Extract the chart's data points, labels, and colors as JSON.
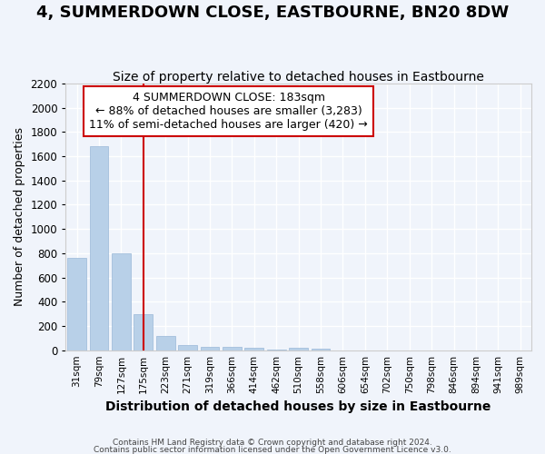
{
  "title": "4, SUMMERDOWN CLOSE, EASTBOURNE, BN20 8DW",
  "subtitle": "Size of property relative to detached houses in Eastbourne",
  "xlabel": "Distribution of detached houses by size in Eastbourne",
  "ylabel": "Number of detached properties",
  "footnote1": "Contains HM Land Registry data © Crown copyright and database right 2024.",
  "footnote2": "Contains public sector information licensed under the Open Government Licence v3.0.",
  "categories": [
    "31sqm",
    "79sqm",
    "127sqm",
    "175sqm",
    "223sqm",
    "271sqm",
    "319sqm",
    "366sqm",
    "414sqm",
    "462sqm",
    "510sqm",
    "558sqm",
    "606sqm",
    "654sqm",
    "702sqm",
    "750sqm",
    "798sqm",
    "846sqm",
    "894sqm",
    "941sqm",
    "989sqm"
  ],
  "values": [
    760,
    1680,
    800,
    300,
    115,
    45,
    28,
    25,
    20,
    2,
    20,
    15,
    0,
    0,
    0,
    0,
    0,
    0,
    0,
    0,
    0
  ],
  "bar_color": "#b8d0e8",
  "bar_edge_color": "#9ab8d8",
  "background_color": "#f0f4fb",
  "grid_color": "#ffffff",
  "red_line_x": 3,
  "ylim": [
    0,
    2200
  ],
  "yticks": [
    0,
    200,
    400,
    600,
    800,
    1000,
    1200,
    1400,
    1600,
    1800,
    2000,
    2200
  ],
  "annotation_text": "4 SUMMERDOWN CLOSE: 183sqm\n← 88% of detached houses are smaller (3,283)\n11% of semi-detached houses are larger (420) →",
  "annotation_box_color": "#ffffff",
  "annotation_border_color": "#cc0000",
  "red_line_color": "#cc0000",
  "title_fontsize": 13,
  "subtitle_fontsize": 10,
  "xlabel_fontsize": 10,
  "ylabel_fontsize": 9,
  "annotation_fontsize": 9
}
